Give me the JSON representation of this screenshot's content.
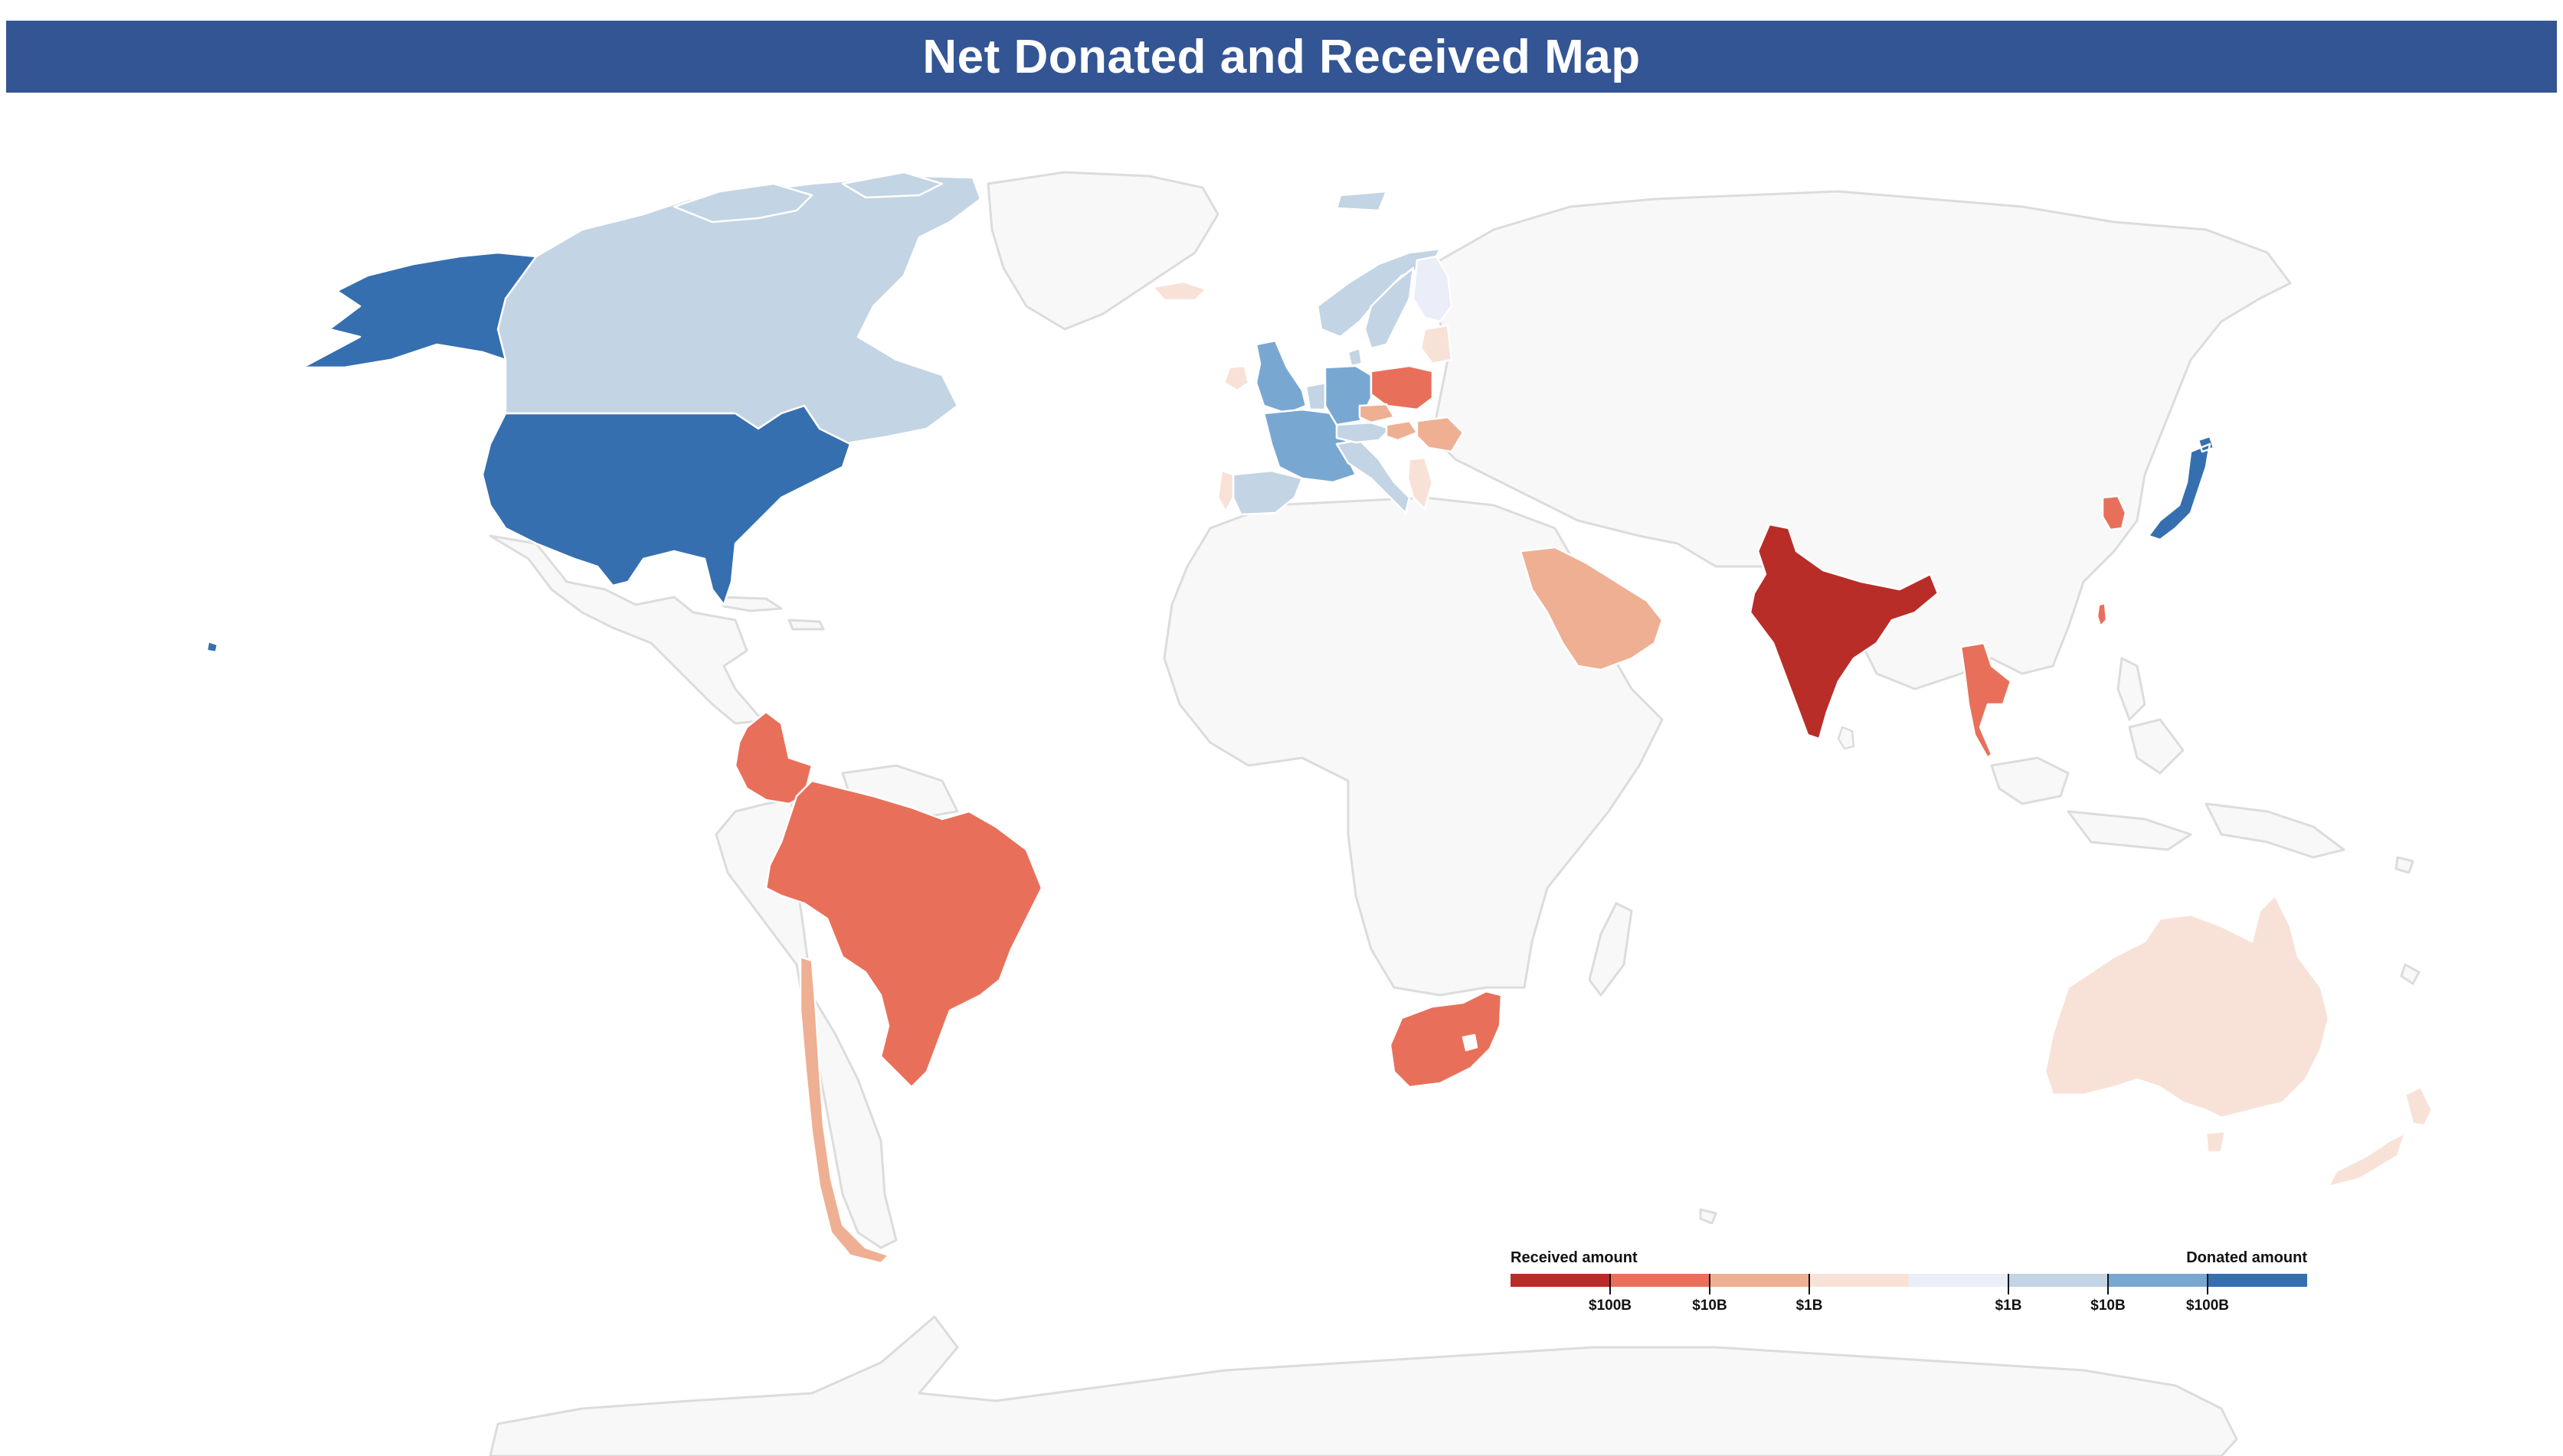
{
  "title": "Net Donated and Received Map",
  "legend": {
    "left_label": "Received amount",
    "right_label": "Donated amount",
    "ticks": [
      "$100B",
      "$10B",
      "$1B",
      "$1B",
      "$10B",
      "$100B"
    ],
    "colors": [
      "#b92d28",
      "#e8705a",
      "#efaf92",
      "#f8e2d8",
      "#ebedf8",
      "#c3d4e4",
      "#78a8d2",
      "#366faf"
    ]
  },
  "colors": {
    "title_bar": "#335594",
    "no_data": "#f8f8f8",
    "border": "#dcdcdc"
  }
}
